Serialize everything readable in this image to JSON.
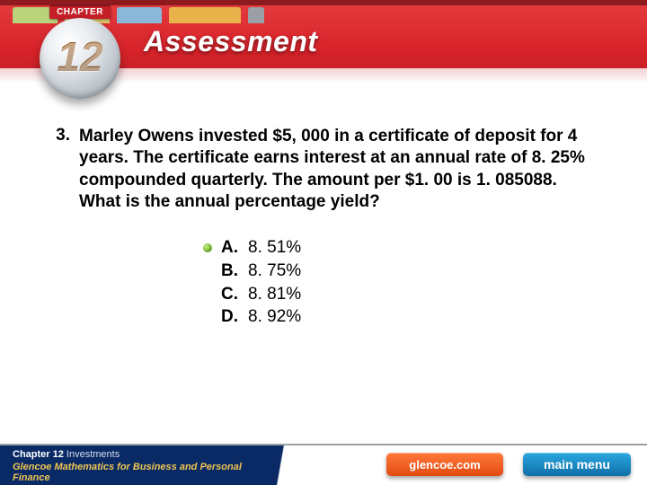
{
  "header": {
    "ribbon": "CHAPTER",
    "chapter_number": "12",
    "title": "Assessment",
    "band_color": "#d8232a"
  },
  "question": {
    "number": "3.",
    "text": "Marley Owens invested $5, 000 in a certificate of deposit for 4 years. The certificate earns interest at an annual rate of 8. 25% compounded quarterly. The amount per $1. 00 is 1. 085088. What is the annual percentage yield?"
  },
  "answers": [
    {
      "letter": "A.",
      "text": "8. 51%",
      "selected": true
    },
    {
      "letter": "B.",
      "text": "8. 75%",
      "selected": false
    },
    {
      "letter": "C.",
      "text": "8. 81%",
      "selected": false
    },
    {
      "letter": "D.",
      "text": "8. 92%",
      "selected": false
    }
  ],
  "footer": {
    "chapter_label": "Chapter 12",
    "chapter_topic": "Investments",
    "book_title": "Glencoe Mathematics for Business and Personal Finance",
    "glencoe_label": "glencoe.com",
    "mainmenu_label": "main menu"
  },
  "colors": {
    "text": "#000000",
    "bullet_green": "#6fae2e",
    "footer_blue": "#0a2a66",
    "glencoe_orange": "#e24b12",
    "menu_blue": "#0f6ea8"
  }
}
